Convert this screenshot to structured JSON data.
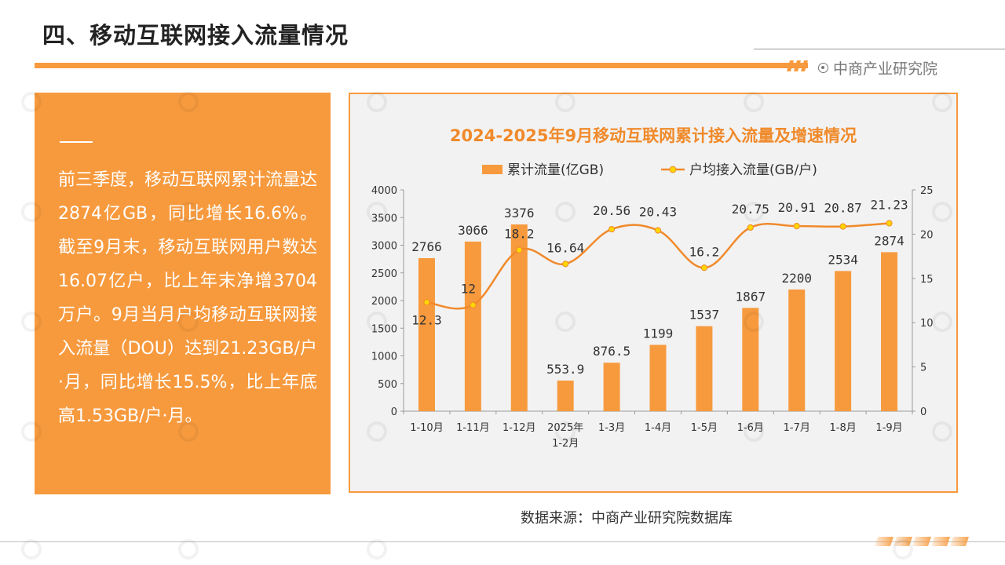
{
  "header": {
    "title": "四、移动互联网接入流量情况",
    "brand": "中商产业研究院",
    "accent_color": "#F79A3E"
  },
  "panel": {
    "text": "前三季度，移动互联网累计流量达2874亿GB，同比增长16.6%。截至9月末，移动互联网用户数达16.07亿户，比上年末净增3704万户。9月当月户均移动互联网接入流量（DOU）达到21.23GB/户·月，同比增长15.5%，比上年底高1.53GB/户·月。"
  },
  "chart_data": {
    "type": "bar",
    "title": "2024-2025年9月移动互联网累计接入流量及增速情况",
    "categories": [
      "1-10月",
      "1-11月",
      "1-12月",
      "2025年\n1-2月",
      "1-3月",
      "1-4月",
      "1-5月",
      "1-6月",
      "1-7月",
      "1-8月",
      "1-9月"
    ],
    "series": [
      {
        "name": "累计流量(亿GB)",
        "type": "bar",
        "axis": "left",
        "color": "#F79A3E",
        "values": [
          2766,
          3066,
          3376,
          553.9,
          876.5,
          1199,
          1537,
          1867,
          2200,
          2534,
          2874
        ],
        "labels": [
          "2766",
          "3066",
          "3376",
          "553.9",
          "876.5",
          "1199",
          "1537",
          "1867",
          "2200",
          "2534",
          "2874"
        ]
      },
      {
        "name": "户均接入流量(GB/户)",
        "type": "line",
        "axis": "right",
        "color": "#F08A2B",
        "marker_color": "#FFD700",
        "values": [
          12.3,
          12,
          18.2,
          16.64,
          20.56,
          20.43,
          16.2,
          20.75,
          20.91,
          20.87,
          21.23
        ],
        "labels": [
          "12.3",
          "12",
          "18.2",
          "16.64",
          "20.56",
          "20.43",
          "16.2",
          "20.75",
          "20.91",
          "20.87",
          "21.23"
        ]
      }
    ],
    "y_left": {
      "min": 0,
      "max": 4000,
      "ticks": [
        "0",
        "500",
        "1000",
        "1500",
        "2000",
        "2500",
        "3000",
        "3500",
        "4000"
      ]
    },
    "y_right": {
      "min": 0,
      "max": 25,
      "ticks": [
        "0",
        "5",
        "10",
        "15",
        "20",
        "25"
      ]
    },
    "legend_position": "top",
    "grid": false
  },
  "footer": {
    "source": "数据来源：中商产业研究院数据库"
  }
}
